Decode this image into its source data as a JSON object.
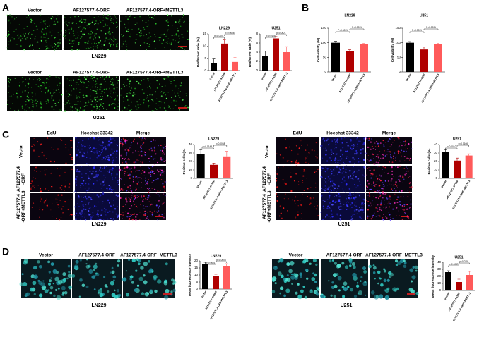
{
  "panels": [
    "A",
    "B",
    "C",
    "D"
  ],
  "figure": {
    "a": {
      "row1_columns": [
        "Vector",
        "AF127577.4-ORF",
        "AF127577.4-ORF+METTL3"
      ],
      "row1_caption": "LN229",
      "row2_columns": [
        "Vector",
        "AF127577.4-ORF",
        "AF127577.4-ORF+METTL3"
      ],
      "row2_caption": "U251"
    },
    "c": {
      "ln229": {
        "columns": [
          "EdU",
          "Hoechst 33342",
          "Merge"
        ],
        "rows": [
          [
            "Vector"
          ],
          [
            "AF127577.4",
            "-ORF"
          ],
          [
            "AF127577.4",
            "-ORF+METTL3"
          ]
        ],
        "caption": "LN229"
      },
      "u251": {
        "columns": [
          "EdU",
          "Hoechst 33342",
          "Merge"
        ],
        "rows": [
          [
            "Vector"
          ],
          [
            "AF127577.4",
            "-ORF"
          ],
          [
            "AF127577.4",
            "-ORF+METTL3"
          ]
        ],
        "caption": "U251"
      }
    },
    "d": {
      "ln229": {
        "columns": [
          "Vector",
          "AF127577.4-ORF",
          "AF127577.4-ORF+METTL3"
        ],
        "caption": "LN229"
      },
      "u251": {
        "columns": [
          "Vector",
          "AF127577.4-ORF",
          "AF127577.4-ORF+METTL3"
        ],
        "caption": "U251"
      }
    }
  },
  "chart_data": [
    {
      "type": "bar",
      "title": "LN229",
      "ylabel": "Red/Green ratio (%)",
      "categories": [
        "Vector",
        "AF127577.4-ORF",
        "AF127577.4-ORF+METTL3"
      ],
      "values": [
        3,
        11,
        3.5
      ],
      "errors": [
        2,
        1.5,
        1.8
      ],
      "colors": [
        "#000000",
        "#b00000",
        "#ff5a5a"
      ],
      "ylim": [
        0,
        15
      ],
      "yticks": [
        0,
        5,
        10,
        15
      ],
      "annotations": [
        "p<0.0001",
        "p=0.0006"
      ]
    },
    {
      "type": "bar",
      "title": "U251",
      "ylabel": "Red/Green ratio (%)",
      "categories": [
        "Vector",
        "AF127577.4-ORF",
        "AF127577.4-ORF+METTL3"
      ],
      "values": [
        3.2,
        7,
        4
      ],
      "errors": [
        1,
        0.4,
        1.2
      ],
      "colors": [
        "#000000",
        "#b00000",
        "#ff5a5a"
      ],
      "ylim": [
        0,
        8
      ],
      "yticks": [
        0,
        2,
        4,
        6,
        8
      ],
      "annotations": [
        "p=0.0105",
        "p=0.0021"
      ]
    },
    {
      "type": "bar",
      "title": "LN229",
      "ylabel": "Cell viability (%)",
      "categories": [
        "Vector",
        "AF127577.4-ORF",
        "AF127577.4-ORF+METTL3"
      ],
      "values": [
        100,
        72,
        95
      ],
      "errors": [
        5,
        4,
        3
      ],
      "colors": [
        "#000000",
        "#b00000",
        "#ff5a5a"
      ],
      "ylim": [
        0,
        150
      ],
      "yticks": [
        0,
        50,
        100,
        150
      ],
      "annotations": [
        "P<0.0001",
        "P<0.0001"
      ]
    },
    {
      "type": "bar",
      "title": "U251",
      "ylabel": "Cell viability (%)",
      "categories": [
        "Vector",
        "AF127577.4-ORF",
        "AF127577.4-ORF+METTL3"
      ],
      "values": [
        100,
        77,
        96
      ],
      "errors": [
        4,
        8,
        2
      ],
      "colors": [
        "#000000",
        "#b00000",
        "#ff5a5a"
      ],
      "ylim": [
        0,
        150
      ],
      "yticks": [
        0,
        50,
        100,
        150
      ],
      "annotations": [
        "P<0.0001",
        "P<0.0001"
      ]
    },
    {
      "type": "bar",
      "title": "LN229",
      "ylabel": "Positive cells (%)",
      "categories": [
        "Vector",
        "AF127577.4-ORF",
        "AF127577.4-ORF+METTL3"
      ],
      "values": [
        29,
        16,
        26
      ],
      "errors": [
        5,
        2,
        6
      ],
      "colors": [
        "#000000",
        "#b00000",
        "#ff5a5a"
      ],
      "ylim": [
        0,
        40
      ],
      "yticks": [
        0,
        10,
        20,
        30,
        40
      ],
      "annotations": [
        "p=0.0148",
        "p=0.0068"
      ]
    },
    {
      "type": "bar",
      "title": "U251",
      "ylabel": "Positive cells (%)",
      "categories": [
        "Vector",
        "AF127577.4-ORF",
        "AF127577.4-ORF+METTL3"
      ],
      "values": [
        31,
        21,
        27
      ],
      "errors": [
        3,
        3,
        2
      ],
      "colors": [
        "#000000",
        "#b00000",
        "#ff5a5a"
      ],
      "ylim": [
        0,
        40
      ],
      "yticks": [
        0,
        10,
        20,
        30,
        40
      ],
      "annotations": [
        "p=0.0010",
        "p=0.0166"
      ]
    },
    {
      "type": "bar",
      "title": "LN229",
      "ylabel": "Mean fluorescence intensity",
      "categories": [
        "Vector",
        "AF127577.4-ORF",
        "AF127577.4-ORF+METTL3"
      ],
      "values": [
        18,
        9,
        16
      ],
      "errors": [
        1,
        1.5,
        2
      ],
      "colors": [
        "#000000",
        "#b00000",
        "#ff5a5a"
      ],
      "ylim": [
        0,
        20
      ],
      "yticks": [
        0,
        5,
        10,
        15,
        20
      ],
      "annotations": [
        "p<0.0001",
        "p=0.0008"
      ]
    },
    {
      "type": "bar",
      "title": "U251",
      "ylabel": "Mean fluorescence intensity",
      "categories": [
        "Vector",
        "AF127577.4-ORF",
        "AF127577.4-ORF+METTL3"
      ],
      "values": [
        26,
        12,
        22
      ],
      "errors": [
        2,
        4,
        5
      ],
      "colors": [
        "#000000",
        "#b00000",
        "#ff5a5a"
      ],
      "ylim": [
        0,
        40
      ],
      "yticks": [
        0,
        10,
        20,
        30,
        40
      ],
      "annotations": [
        "p=0.0049",
        "p=0.0251"
      ]
    }
  ]
}
